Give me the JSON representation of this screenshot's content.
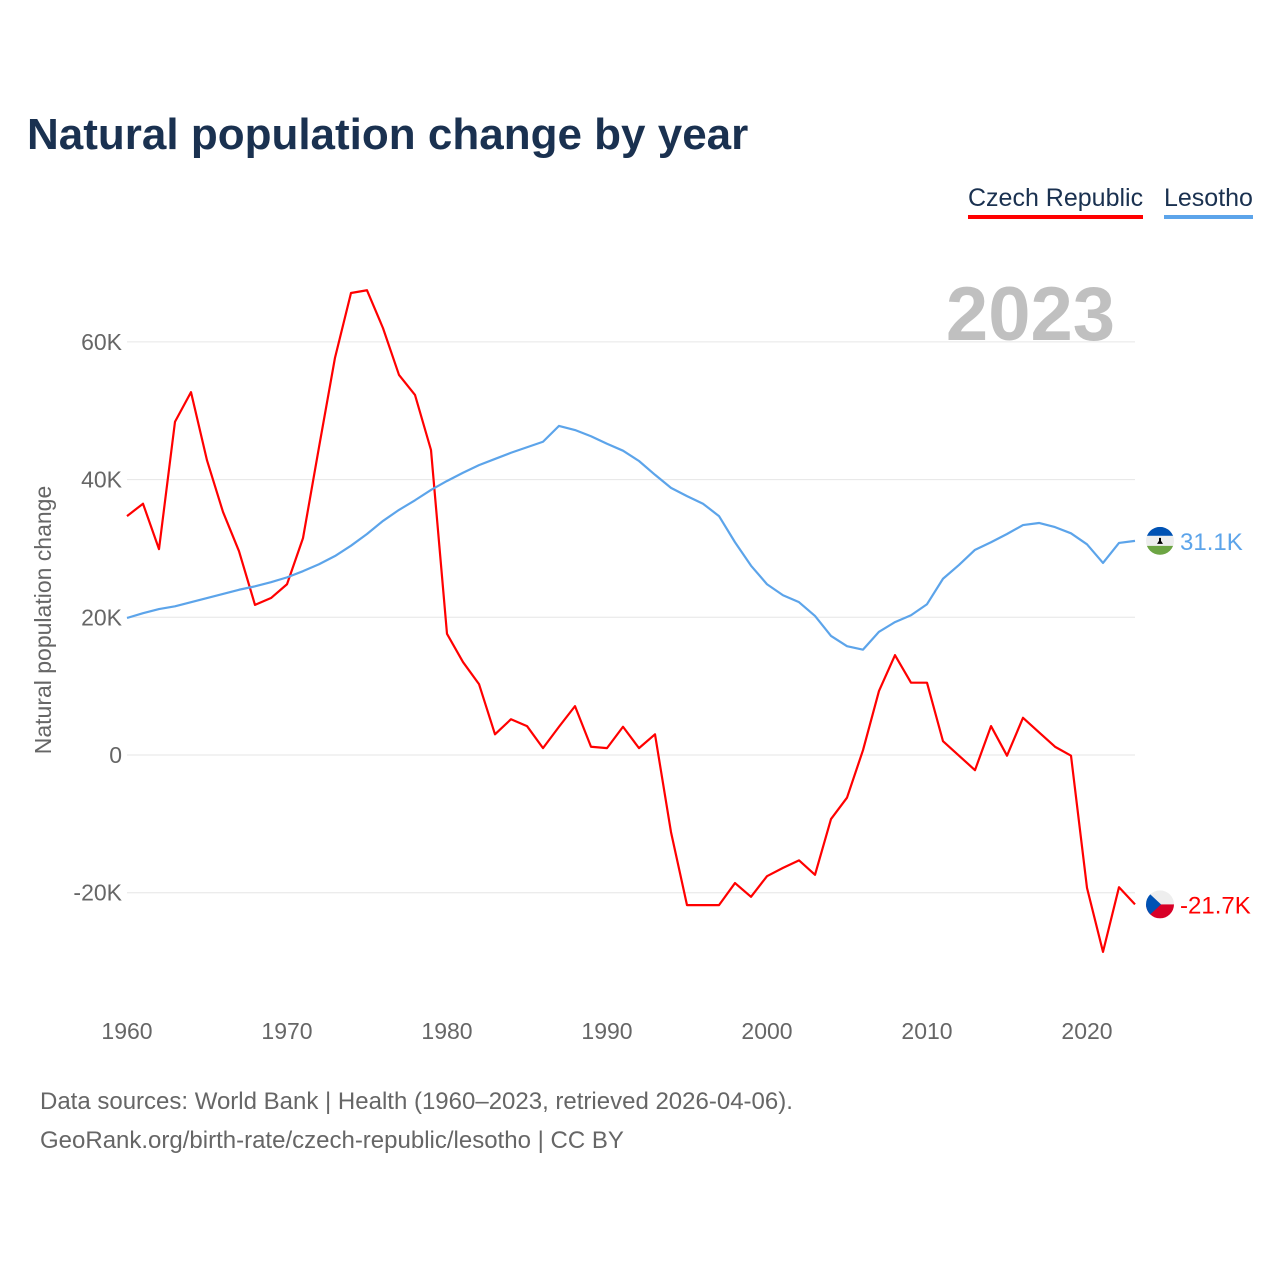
{
  "chart_data": {
    "type": "line",
    "title": "Natural population change by year",
    "ylabel": "Natural population change",
    "xlabel": "",
    "year_label": "2023",
    "xlim": [
      1960,
      2023
    ],
    "ylim": [
      -30000,
      70000
    ],
    "yticks": [
      -20000,
      0,
      20000,
      40000,
      60000
    ],
    "ytick_labels": [
      "-20K",
      "0",
      "20K",
      "40K",
      "60K"
    ],
    "xticks": [
      1960,
      1970,
      1980,
      1990,
      2000,
      2010,
      2020
    ],
    "xtick_labels": [
      "1960",
      "1970",
      "1980",
      "1990",
      "2000",
      "2010",
      "2020"
    ],
    "grid": true,
    "legend_position": "top-right",
    "series": [
      {
        "name": "Czech Republic",
        "color": "#ff0000",
        "end_label": "-21.7K",
        "flag": "czech-flag",
        "values": [
          34.7,
          36.5,
          29.9,
          48.4,
          52.7,
          42.8,
          35.3,
          29.6,
          21.8,
          22.8,
          24.8,
          31.5,
          44.7,
          57.7,
          67.1,
          67.5,
          62,
          55.2,
          52.3,
          44.3,
          17.6,
          13.5,
          10.3,
          3.0,
          5.2,
          4.2,
          1.0,
          4.1,
          7.1,
          1.2,
          1.0,
          4.1,
          1.0,
          3.0,
          -11.2,
          -21.8,
          -21.8,
          -21.8,
          -18.6,
          -20.6,
          -17.6,
          -16.4,
          -15.3,
          -17.4,
          -9.3,
          -6.2,
          0.7,
          9.3,
          14.5,
          10.5,
          10.5,
          2.0,
          -0.1,
          -2.2,
          4.2,
          -0.1,
          5.4,
          3.3,
          1.2,
          -0.1,
          -19.3,
          -28.6,
          -19.2,
          -21.7
        ]
      },
      {
        "name": "Lesotho",
        "color": "#5ca4ea",
        "end_label": "31.1K",
        "flag": "lesotho-flag",
        "values": [
          19.9,
          20.6,
          21.2,
          21.6,
          22.2,
          22.8,
          23.4,
          24.0,
          24.5,
          25.1,
          25.8,
          26.7,
          27.7,
          28.9,
          30.4,
          32.1,
          34.0,
          35.6,
          37.0,
          38.5,
          39.8,
          41.0,
          42.1,
          43.0,
          43.9,
          44.7,
          45.5,
          47.8,
          47.2,
          46.3,
          45.2,
          44.2,
          42.7,
          40.7,
          38.8,
          37.6,
          36.5,
          34.7,
          30.9,
          27.5,
          24.8,
          23.2,
          22.2,
          20.2,
          17.3,
          15.8,
          15.3,
          17.9,
          19.3,
          20.3,
          21.9,
          25.6,
          27.6,
          29.8,
          30.9,
          32.1,
          33.4,
          33.7,
          33.1,
          32.2,
          30.6,
          27.9,
          30.8,
          31.1
        ]
      }
    ],
    "value_unit": "thousands"
  },
  "footer": {
    "line1": "Data sources: World Bank | Health (1960–2023, retrieved 2026-04-06).",
    "line2": "GeoRank.org/birth-rate/czech-republic/lesotho | CC BY"
  }
}
